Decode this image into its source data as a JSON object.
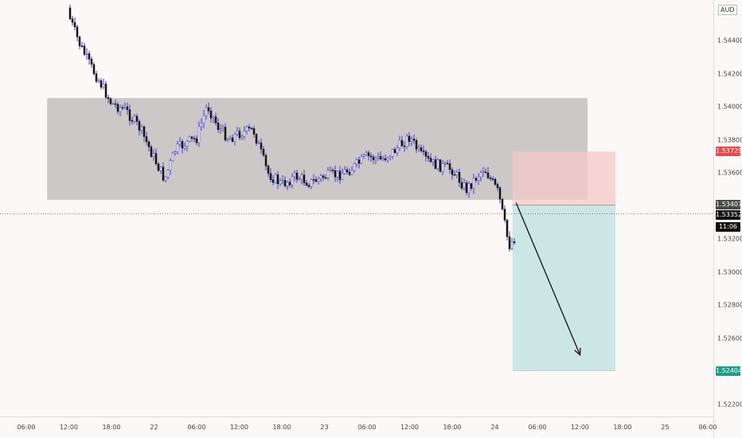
{
  "currency": "AUD",
  "price_ticks": [
    "1.54400",
    "1.54200",
    "1.54000",
    "1.53800",
    "1.53600",
    "1.53200",
    "1.53000",
    "1.52800",
    "1.52600",
    "1.52200"
  ],
  "time_ticks": [
    "06:00",
    "12:00",
    "18:00",
    "22",
    "06:00",
    "12:00",
    "18:00",
    "23",
    "06:00",
    "12:00",
    "18:00",
    "24",
    "06:00",
    "12:00",
    "18:00",
    "25",
    "06:00"
  ],
  "labels": {
    "stop": {
      "text": "1.53729",
      "color": "#e84a4a"
    },
    "entry": {
      "text": "1.53407",
      "color": "#4a4a4a"
    },
    "last": {
      "text": "1.53352",
      "color": "#111111"
    },
    "countdown": {
      "text": "11:06",
      "color": "#111111"
    },
    "target": {
      "text": "1.52404",
      "color": "#1aa08a"
    }
  },
  "colors": {
    "candle_up": "#ffffff",
    "candle_down": "#141414",
    "wick": "#4a3fc4",
    "zone": "#c9c5c5",
    "risk": "#f6c9c9",
    "reward": "#c6e4e0",
    "arrow": "#111111"
  },
  "chart_data": {
    "type": "candlestick",
    "y_range": [
      1.5212,
      1.546
    ],
    "x_range": [
      "21 05:00",
      "25 08:00"
    ],
    "price_path": [
      [
        "21 12:00",
        1.5455
      ],
      [
        "21 13:30",
        1.5438
      ],
      [
        "21 15:00",
        1.5425
      ],
      [
        "21 16:30",
        1.5414
      ],
      [
        "21 18:00",
        1.5402
      ],
      [
        "21 20:00",
        1.5398
      ],
      [
        "21 22:00",
        1.5387
      ],
      [
        "22 00:00",
        1.5369
      ],
      [
        "22 01:30",
        1.5356
      ],
      [
        "22 03:00",
        1.5374
      ],
      [
        "22 04:30",
        1.5378
      ],
      [
        "22 06:00",
        1.5381
      ],
      [
        "22 07:30",
        1.5401
      ],
      [
        "22 09:00",
        1.5388
      ],
      [
        "22 10:30",
        1.5381
      ],
      [
        "22 12:00",
        1.5384
      ],
      [
        "22 14:00",
        1.5386
      ],
      [
        "22 16:00",
        1.536
      ],
      [
        "22 18:00",
        1.5353
      ],
      [
        "22 20:00",
        1.5358
      ],
      [
        "22 22:00",
        1.5354
      ],
      [
        "23 00:00",
        1.5358
      ],
      [
        "23 02:00",
        1.5359
      ],
      [
        "23 04:00",
        1.5363
      ],
      [
        "23 06:00",
        1.537
      ],
      [
        "23 08:00",
        1.5368
      ],
      [
        "23 10:00",
        1.5374
      ],
      [
        "23 12:00",
        1.5382
      ],
      [
        "23 13:30",
        1.5371
      ],
      [
        "23 15:00",
        1.5366
      ],
      [
        "23 16:30",
        1.5364
      ],
      [
        "23 18:00",
        1.5362
      ],
      [
        "23 20:00",
        1.535
      ],
      [
        "23 21:30",
        1.5358
      ],
      [
        "23 22:30",
        1.5363
      ],
      [
        "24 00:30",
        1.5348
      ],
      [
        "24 02:00",
        1.5316
      ],
      [
        "24 03:00",
        1.5322
      ],
      [
        "24 03:30",
        1.533
      ],
      [
        "24 04:30",
        1.5336
      ]
    ],
    "zones": [
      {
        "name": "consolidation",
        "from": "21 09:00",
        "to": "24 13:00",
        "top": 1.5405,
        "bottom": 1.5344
      }
    ],
    "short_position": {
      "from": "24 02:30",
      "to": "24 17:00",
      "entry": 1.53407,
      "stop": 1.53729,
      "target": 1.52404
    },
    "arrow": {
      "from": [
        "24 03:00",
        1.5342
      ],
      "to": [
        "24 12:00",
        1.525
      ]
    }
  }
}
